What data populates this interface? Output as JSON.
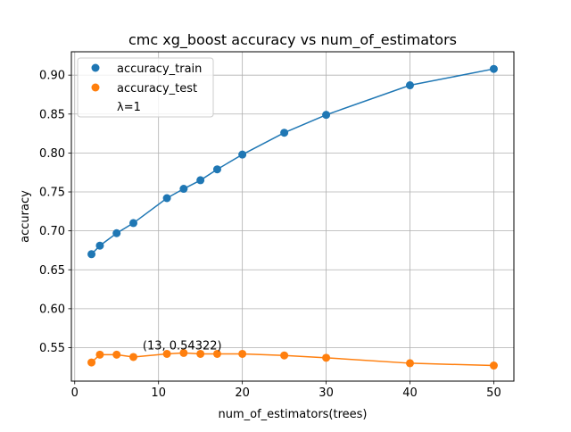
{
  "chart_data": {
    "type": "scatter",
    "title": "cmc xg_boost accuracy vs num_of_estimators",
    "xlabel": "num_of_estimators(trees)",
    "ylabel": "accuracy",
    "xlim": [
      -0.4,
      52.4
    ],
    "ylim": [
      0.507,
      0.93
    ],
    "xticks": [
      0,
      10,
      20,
      30,
      40,
      50
    ],
    "xtick_labels": [
      "0",
      "10",
      "20",
      "30",
      "40",
      "50"
    ],
    "yticks": [
      0.55,
      0.6,
      0.65,
      0.7,
      0.75,
      0.8,
      0.85,
      0.9
    ],
    "ytick_labels": [
      "0.55",
      "0.60",
      "0.65",
      "0.70",
      "0.75",
      "0.80",
      "0.85",
      "0.90"
    ],
    "grid": true,
    "legend_position": "top-left",
    "x": [
      2,
      3,
      5,
      7,
      11,
      13,
      15,
      17,
      20,
      25,
      30,
      40,
      50
    ],
    "series": [
      {
        "name": "accuracy_train",
        "color": "#1f77b4",
        "values": [
          0.67,
          0.681,
          0.697,
          0.71,
          0.742,
          0.754,
          0.765,
          0.779,
          0.798,
          0.826,
          0.849,
          0.887,
          0.908
        ]
      },
      {
        "name": "accuracy_test",
        "color": "#ff7f0e",
        "values": [
          0.531,
          0.541,
          0.541,
          0.538,
          0.542,
          0.54322,
          0.542,
          0.542,
          0.542,
          0.54,
          0.537,
          0.53,
          0.527
        ]
      }
    ],
    "legend_extra": "λ=1",
    "annotations": [
      {
        "text": "(13, 0.54322)",
        "x": 13,
        "y": 0.54322
      }
    ]
  }
}
